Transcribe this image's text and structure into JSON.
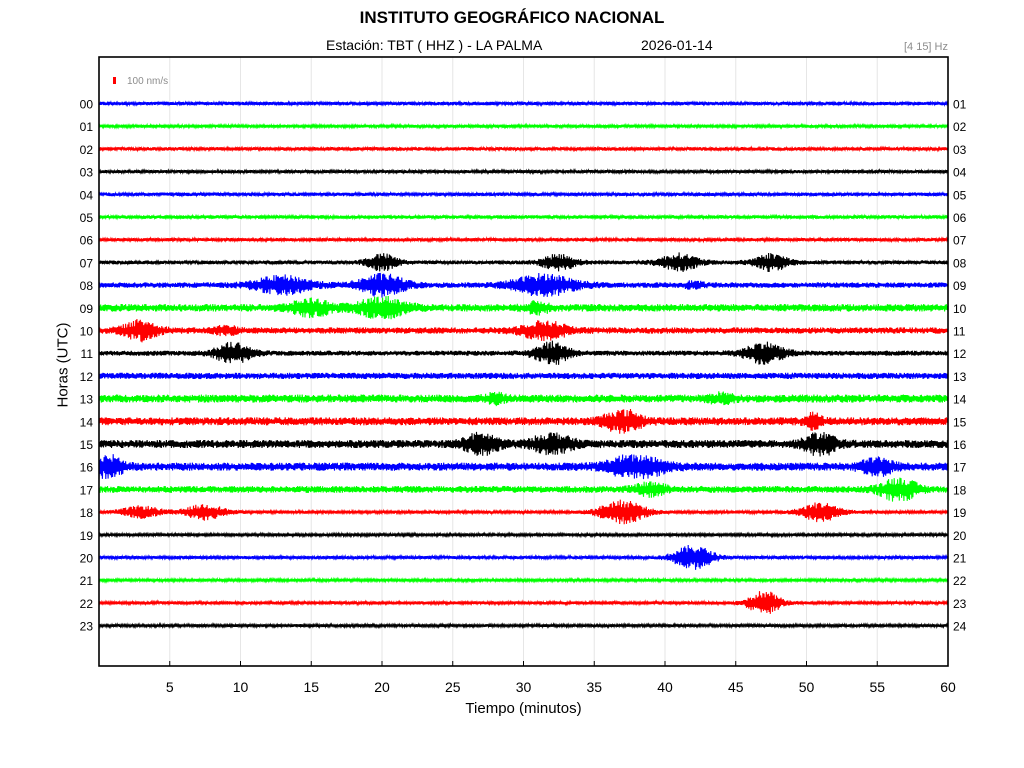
{
  "header": {
    "title": "INSTITUTO GEOGRÁFICO NACIONAL",
    "station": "Estación:  TBT ( HHZ ) - LA PALMA",
    "date": "2026-01-14",
    "band": "[4 15] Hz"
  },
  "chart_data": {
    "type": "line",
    "title": "INSTITUTO GEOGRÁFICO NACIONAL",
    "xlabel": "Tiempo (minutos)",
    "ylabel": "Horas (UTC)",
    "xlim": [
      0,
      60
    ],
    "x_ticks": [
      5,
      10,
      15,
      20,
      25,
      30,
      35,
      40,
      45,
      50,
      55,
      60
    ],
    "grid": true,
    "scale_bar": {
      "label": "100 nm/s",
      "color": "#ff0000"
    },
    "left_hour_labels": [
      "00",
      "01",
      "02",
      "03",
      "04",
      "05",
      "06",
      "07",
      "08",
      "09",
      "10",
      "11",
      "12",
      "13",
      "14",
      "15",
      "16",
      "17",
      "18",
      "19",
      "20",
      "21",
      "22",
      "23"
    ],
    "right_hour_labels": [
      "01",
      "02",
      "03",
      "04",
      "05",
      "06",
      "07",
      "08",
      "09",
      "10",
      "11",
      "12",
      "13",
      "14",
      "15",
      "16",
      "17",
      "18",
      "19",
      "20",
      "21",
      "22",
      "23",
      "24"
    ],
    "trace_colors": [
      "#0000ff",
      "#00ff00",
      "#ff0000",
      "#000000"
    ],
    "series": [
      {
        "hour": "00",
        "noise": 0.2,
        "events": []
      },
      {
        "hour": "01",
        "noise": 0.17,
        "events": []
      },
      {
        "hour": "02",
        "noise": 0.2,
        "events": []
      },
      {
        "hour": "03",
        "noise": 0.18,
        "events": []
      },
      {
        "hour": "04",
        "noise": 0.2,
        "events": []
      },
      {
        "hour": "05",
        "noise": 0.2,
        "events": []
      },
      {
        "hour": "06",
        "noise": 0.19,
        "events": []
      },
      {
        "hour": "07",
        "noise": 0.22,
        "events": [
          [
            20,
            0.8,
            0.85
          ],
          [
            32.5,
            0.9,
            0.8
          ],
          [
            41,
            1.0,
            0.9
          ],
          [
            47.5,
            0.9,
            0.9
          ]
        ]
      },
      {
        "hour": "08",
        "noise": 0.3,
        "events": [
          [
            13,
            1.5,
            0.9
          ],
          [
            20,
            1.2,
            1.1
          ],
          [
            31.5,
            1.6,
            1.1
          ],
          [
            42,
            0.5,
            0.3
          ]
        ]
      },
      {
        "hour": "09",
        "noise": 0.42,
        "events": [
          [
            15,
            1.0,
            0.8
          ],
          [
            20,
            1.2,
            1.0
          ],
          [
            31,
            0.6,
            0.5
          ]
        ]
      },
      {
        "hour": "10",
        "noise": 0.35,
        "events": [
          [
            3,
            0.9,
            1.0
          ],
          [
            9,
            0.6,
            0.4
          ],
          [
            31.5,
            1.2,
            0.9
          ]
        ]
      },
      {
        "hour": "11",
        "noise": 0.28,
        "events": [
          [
            9.5,
            0.9,
            1.1
          ],
          [
            32,
            0.9,
            1.2
          ],
          [
            47,
            1.0,
            1.1
          ]
        ]
      },
      {
        "hour": "12",
        "noise": 0.35,
        "events": []
      },
      {
        "hour": "13",
        "noise": 0.45,
        "events": [
          [
            28,
            0.5,
            0.4
          ],
          [
            44,
            0.6,
            0.4
          ]
        ]
      },
      {
        "hour": "14",
        "noise": 0.45,
        "events": [
          [
            37,
            0.9,
            1.3
          ],
          [
            50.5,
            0.4,
            0.7
          ]
        ]
      },
      {
        "hour": "15",
        "noise": 0.45,
        "events": [
          [
            27,
            0.9,
            1.0
          ],
          [
            32,
            1.0,
            1.0
          ],
          [
            51,
            0.8,
            1.1
          ]
        ]
      },
      {
        "hour": "16",
        "noise": 0.45,
        "events": [
          [
            0.5,
            0.8,
            1.2
          ],
          [
            38,
            1.4,
            1.2
          ],
          [
            55,
            0.8,
            0.8
          ]
        ]
      },
      {
        "hour": "17",
        "noise": 0.38,
        "events": [
          [
            39,
            0.8,
            0.6
          ],
          [
            56.5,
            0.9,
            1.2
          ]
        ]
      },
      {
        "hour": "18",
        "noise": 0.18,
        "events": [
          [
            3,
            1.0,
            0.6
          ],
          [
            7.5,
            1.0,
            0.8
          ],
          [
            37,
            1.1,
            1.4
          ],
          [
            51,
            1.0,
            1.0
          ]
        ]
      },
      {
        "hour": "19",
        "noise": 0.16,
        "events": []
      },
      {
        "hour": "20",
        "noise": 0.18,
        "events": [
          [
            42,
            1.0,
            1.3
          ]
        ]
      },
      {
        "hour": "21",
        "noise": 0.16,
        "events": []
      },
      {
        "hour": "22",
        "noise": 0.18,
        "events": [
          [
            47,
            0.8,
            1.3
          ]
        ]
      },
      {
        "hour": "23",
        "noise": 0.16,
        "events": []
      }
    ]
  }
}
